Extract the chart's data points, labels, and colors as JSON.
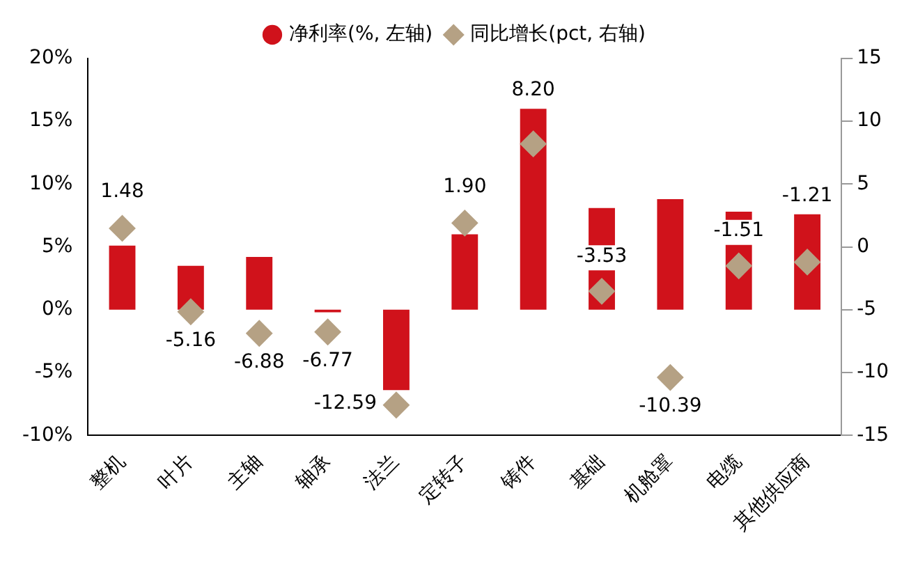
{
  "chart_data": {
    "type": "bar",
    "categories": [
      "整机",
      "叶片",
      "主轴",
      "轴承",
      "法兰",
      "定转子",
      "铸件",
      "基础",
      "机舱罩",
      "电缆",
      "其他供应商"
    ],
    "series": [
      {
        "name": "净利率(%, 左轴)",
        "color": "#d0121b",
        "values": [
          5.1,
          3.5,
          4.2,
          -0.2,
          -6.4,
          6.0,
          16.0,
          8.1,
          8.8,
          7.8,
          7.6
        ]
      },
      {
        "name": "同比增长(pct, 右轴)",
        "type": "scatter",
        "axis": "y2",
        "color": "#b5a184",
        "marker": "diamond",
        "value_labels": [
          "1.48",
          "-5.16",
          "-6.88",
          "-6.77",
          "-12.59",
          "1.90",
          "8.20",
          "-3.53",
          "-10.39",
          "-1.51",
          "-1.21"
        ],
        "values": [
          1.48,
          -5.16,
          -6.88,
          -6.77,
          -12.59,
          1.9,
          8.2,
          -3.53,
          -10.39,
          -1.51,
          -1.21
        ]
      }
    ],
    "ylim": [
      -10,
      20
    ],
    "yticks": [
      {
        "value": -10,
        "label": "-10%"
      },
      {
        "value": -5,
        "label": "-5%"
      },
      {
        "value": 0,
        "label": "0%"
      },
      {
        "value": 5,
        "label": "5%"
      },
      {
        "value": 10,
        "label": "10%"
      },
      {
        "value": 15,
        "label": "15%"
      },
      {
        "value": 20,
        "label": "20%"
      }
    ],
    "y2lim": [
      -15,
      15
    ],
    "y2ticks": [
      -15,
      -10,
      -5,
      0,
      5,
      10,
      15
    ],
    "grid": false,
    "legend": "top"
  }
}
